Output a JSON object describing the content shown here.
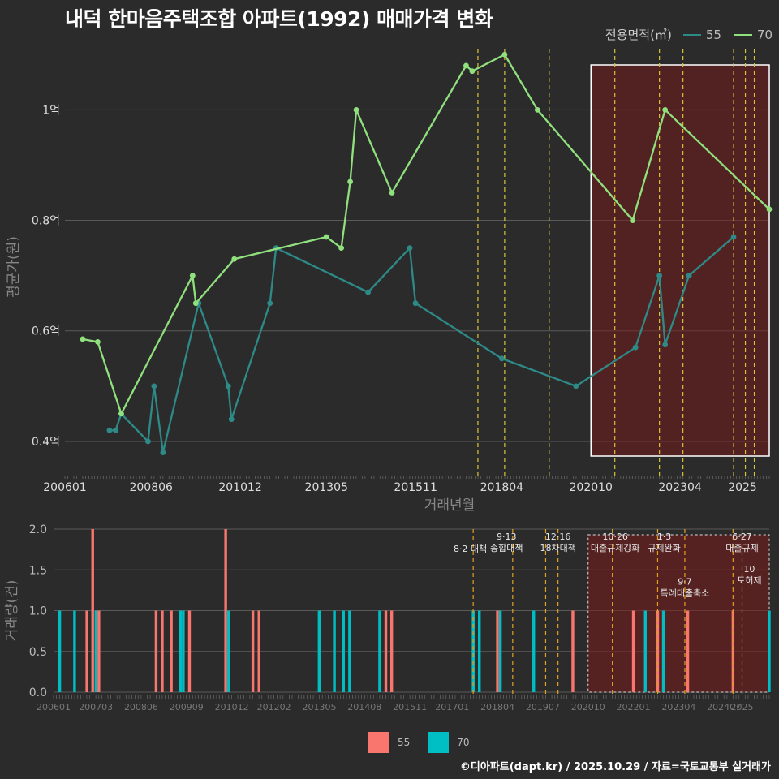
{
  "title": "내덕 한마음주택조합 아파트(1992) 매매가격 변화",
  "footer": "©디아파트(dapt.kr) / 2025.10.29 / 자료=국토교통부 실거래가",
  "legend": {
    "title": "전용면적(㎡)",
    "items": [
      {
        "name": "55",
        "line_color": "#2e8a87",
        "bar_color": "#f8766d"
      },
      {
        "name": "70",
        "line_color": "#90e07d",
        "bar_color": "#00bfc4"
      }
    ]
  },
  "chart_data": [
    {
      "type": "line",
      "title": "내덕 한마음주택조합 아파트(1992) 매매가격 변화",
      "xlabel": "거래년월",
      "ylabel": "평균가(원)",
      "xlim": [
        2006.0,
        2025.75
      ],
      "ylim": [
        0.35,
        1.14
      ],
      "x_ticks": [
        {
          "label": "200601",
          "v": 2006.0
        },
        {
          "label": "200806",
          "v": 2008.417
        },
        {
          "label": "201012",
          "v": 2010.917
        },
        {
          "label": "201305",
          "v": 2013.333
        },
        {
          "label": "201511",
          "v": 2015.833
        },
        {
          "label": "201804",
          "v": 2018.25
        },
        {
          "label": "202010",
          "v": 2020.75
        },
        {
          "label": "202304",
          "v": 2023.25
        },
        {
          "label": "2025",
          "v": 2025.0
        }
      ],
      "y_ticks": [
        {
          "label": "0.4억",
          "v": 0.4
        },
        {
          "label": "0.6억",
          "v": 0.6
        },
        {
          "label": "0.8억",
          "v": 0.8
        },
        {
          "label": "1억",
          "v": 1.0
        }
      ],
      "series": [
        {
          "name": "55",
          "x": [
            2007.25,
            2007.42,
            2007.58,
            2008.33,
            2008.5,
            2008.75,
            2009.75,
            2010.58,
            2010.67,
            2011.75,
            2011.92,
            2014.5,
            2015.67,
            2015.83,
            2018.25,
            2020.33,
            2022.0,
            2022.67,
            2022.83,
            2023.5,
            2024.75
          ],
          "values": [
            0.42,
            0.42,
            0.45,
            0.4,
            0.5,
            0.38,
            0.65,
            0.5,
            0.44,
            0.65,
            0.75,
            0.67,
            0.75,
            0.65,
            0.55,
            0.5,
            0.57,
            0.7,
            0.575,
            0.7,
            0.77
          ]
        },
        {
          "name": "70",
          "x": [
            2006.5,
            2006.92,
            2007.58,
            2009.58,
            2009.67,
            2010.75,
            2013.33,
            2013.75,
            2014.0,
            2014.17,
            2015.17,
            2017.25,
            2017.42,
            2018.33,
            2019.25,
            2021.92,
            2022.83,
            2025.75
          ],
          "values": [
            0.585,
            0.58,
            0.45,
            0.7,
            0.65,
            0.73,
            0.77,
            0.75,
            0.87,
            1.0,
            0.85,
            1.08,
            1.07,
            1.1,
            1.0,
            0.8,
            1.0,
            0.82
          ]
        }
      ],
      "event_lines_x": [
        2017.58,
        2018.33,
        2019.58,
        2021.42,
        2022.67,
        2023.33,
        2024.75,
        2025.08,
        2025.33
      ],
      "highlight_x_range": [
        2020.75,
        2025.75
      ]
    },
    {
      "type": "bar",
      "xlabel": "",
      "ylabel": "거래량(건)",
      "xlim": [
        2006.0,
        2025.75
      ],
      "ylim": [
        0,
        2.0
      ],
      "x_ticks": [
        {
          "label": "200601",
          "v": 2006.0
        },
        {
          "label": "200703",
          "v": 2007.167
        },
        {
          "label": "200806",
          "v": 2008.417
        },
        {
          "label": "200909",
          "v": 2009.667
        },
        {
          "label": "201012",
          "v": 2010.917
        },
        {
          "label": "201202",
          "v": 2012.083
        },
        {
          "label": "201305",
          "v": 2013.333
        },
        {
          "label": "201408",
          "v": 2014.583
        },
        {
          "label": "201511",
          "v": 2015.833
        },
        {
          "label": "201701",
          "v": 2017.0
        },
        {
          "label": "201804",
          "v": 2018.25
        },
        {
          "label": "201907",
          "v": 2019.5
        },
        {
          "label": "202010",
          "v": 2020.75
        },
        {
          "label": "202201",
          "v": 2022.0
        },
        {
          "label": "202304",
          "v": 2023.25
        },
        {
          "label": "202407",
          "v": 2024.5
        },
        {
          "label": "2025",
          "v": 2025.0
        }
      ],
      "y_ticks": [
        {
          "label": "0.0",
          "v": 0.0
        },
        {
          "label": "0.5",
          "v": 0.5
        },
        {
          "label": "1.0",
          "v": 1.0
        },
        {
          "label": "1.5",
          "v": 1.5
        },
        {
          "label": "2.0",
          "v": 2.0
        }
      ],
      "series": [
        {
          "name": "55",
          "x": [
            2006.92,
            2007.08,
            2007.25,
            2008.83,
            2009.0,
            2009.25,
            2009.75,
            2010.75,
            2011.5,
            2011.67,
            2015.17,
            2015.33,
            2017.58,
            2018.25,
            2020.33,
            2022.0,
            2022.67,
            2022.83,
            2023.5,
            2024.75
          ],
          "values": [
            1,
            2,
            1,
            1,
            1,
            1,
            1,
            2,
            1,
            1,
            1,
            1,
            1,
            1,
            1,
            1,
            1,
            1,
            1,
            1
          ]
        },
        {
          "name": "70",
          "x": [
            2006.17,
            2006.58,
            2007.17,
            2009.5,
            2009.58,
            2010.83,
            2013.33,
            2013.75,
            2014.0,
            2014.17,
            2015.0,
            2017.58,
            2017.75,
            2018.33,
            2019.25,
            2022.33,
            2022.83,
            2025.75
          ],
          "values": [
            1,
            1,
            1,
            1,
            1,
            1,
            1,
            1,
            1,
            1,
            1,
            1,
            1,
            1,
            1,
            1,
            1,
            1
          ]
        }
      ],
      "event_lines_x": [
        2017.58,
        2018.67,
        2019.58,
        2019.92,
        2021.42,
        2022.67,
        2023.42,
        2024.75,
        2025.0
      ],
      "highlight_x_range": [
        2020.75,
        2025.75
      ],
      "annotations": [
        {
          "lines": [
            "8·2 대책"
          ],
          "x": 2017.5,
          "y": 1.8
        },
        {
          "lines": [
            "9·13",
            "종합대책"
          ],
          "x": 2018.5,
          "y": 1.95
        },
        {
          "lines": [
            "12·16",
            "18차대책"
          ],
          "x": 2019.92,
          "y": 1.95
        },
        {
          "lines": [
            "10·26",
            "대출규제강화"
          ],
          "x": 2021.5,
          "y": 1.95
        },
        {
          "lines": [
            "1·3",
            "규제완화"
          ],
          "x": 2022.85,
          "y": 1.95
        },
        {
          "lines": [
            "9·7",
            "특례대출축소"
          ],
          "x": 2023.42,
          "y": 1.4
        },
        {
          "lines": [
            "6·27",
            "대출규제"
          ],
          "x": 2025.0,
          "y": 1.95
        },
        {
          "lines": [
            "10",
            "토허제"
          ],
          "x": 2025.2,
          "y": 1.55
        }
      ]
    }
  ]
}
